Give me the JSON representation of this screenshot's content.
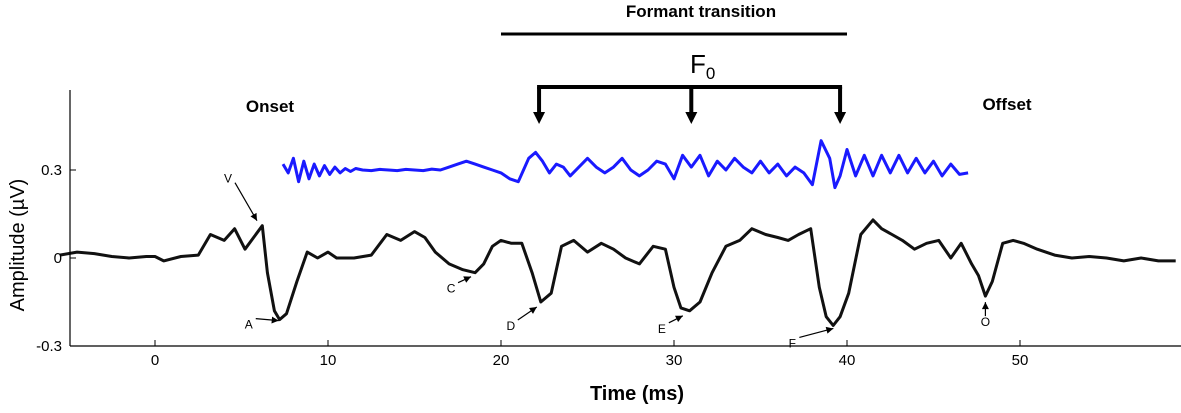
{
  "chart_data": {
    "type": "line",
    "xlabel": "Time (ms)",
    "ylabel": "Amplitude (µV)",
    "xlim": [
      -5.5,
      59
    ],
    "ylim": [
      -0.3,
      0.3
    ],
    "xticks": [
      0,
      10,
      20,
      30,
      40,
      50
    ],
    "yticks": [
      -0.3,
      0,
      0.3
    ],
    "ytick_labels": [
      "-0.3",
      "0",
      "0.3"
    ],
    "grid": false,
    "colors": {
      "stimulus": "#1a1aff",
      "response": "#111111"
    },
    "annotations": {
      "onset": "Onset",
      "offset": "Offset",
      "formant_transition": "Formant transition",
      "formant_transition_range": [
        20,
        40
      ],
      "f0_main": "F",
      "f0_sub": "0",
      "f0_arrow_times": [
        22.2,
        31,
        39.6
      ]
    },
    "peaks": [
      {
        "label": "V",
        "t": 6.3,
        "y": 0.11
      },
      {
        "label": "A",
        "t": 7.5,
        "y": -0.2
      },
      {
        "label": "C",
        "t": 18.5,
        "y": -0.05
      },
      {
        "label": "D",
        "t": 22.3,
        "y": -0.15
      },
      {
        "label": "E",
        "t": 30.8,
        "y": -0.18
      },
      {
        "label": "F",
        "t": 39.5,
        "y": -0.23
      },
      {
        "label": "O",
        "t": 48,
        "y": -0.13
      }
    ],
    "series": [
      {
        "kind": "response",
        "x": [
          -5.5,
          -4.5,
          -3.5,
          -2.5,
          -1.5,
          -0.5,
          0,
          0.5,
          1.5,
          2.5,
          3.2,
          4,
          4.6,
          5.2,
          5.7,
          6.2,
          6.5,
          6.9,
          7.2,
          7.6,
          8.2,
          8.8,
          9.4,
          10,
          10.5,
          11.5,
          12.5,
          13.4,
          14.2,
          15,
          15.6,
          16.2,
          17,
          17.8,
          18.5,
          19,
          19.5,
          20,
          20.6,
          21.2,
          21.8,
          22.3,
          22.9,
          23.5,
          24.2,
          25,
          25.8,
          26.5,
          27.2,
          28,
          28.8,
          29.5,
          30,
          30.4,
          30.9,
          31.5,
          32.2,
          33,
          33.8,
          34.5,
          35.3,
          36,
          36.6,
          37.2,
          37.9,
          38.4,
          38.8,
          39.2,
          39.6,
          40.1,
          40.8,
          41.5,
          42,
          42.6,
          43.2,
          43.9,
          44.6,
          45.3,
          46,
          46.6,
          47.2,
          47.6,
          48,
          48.4,
          49,
          49.6,
          50.2,
          51,
          52,
          53,
          54,
          55,
          56,
          57,
          58,
          59
        ],
        "y": [
          0.01,
          0.02,
          0.015,
          0.005,
          0,
          0.005,
          0.005,
          -0.01,
          0.005,
          0.01,
          0.08,
          0.06,
          0.1,
          0.03,
          0.07,
          0.11,
          -0.05,
          -0.18,
          -0.21,
          -0.19,
          -0.08,
          0.02,
          0.0,
          0.02,
          0.0,
          0.0,
          0.01,
          0.08,
          0.06,
          0.09,
          0.07,
          0.02,
          -0.02,
          -0.04,
          -0.05,
          -0.02,
          0.04,
          0.06,
          0.05,
          0.05,
          -0.05,
          -0.15,
          -0.12,
          0.04,
          0.06,
          0.02,
          0.05,
          0.03,
          0.0,
          -0.02,
          0.04,
          0.03,
          -0.1,
          -0.17,
          -0.18,
          -0.15,
          -0.05,
          0.04,
          0.06,
          0.1,
          0.08,
          0.07,
          0.06,
          0.08,
          0.1,
          -0.1,
          -0.2,
          -0.23,
          -0.2,
          -0.12,
          0.08,
          0.13,
          0.1,
          0.08,
          0.06,
          0.03,
          0.05,
          0.06,
          0.0,
          0.05,
          -0.02,
          -0.06,
          -0.13,
          -0.08,
          0.05,
          0.06,
          0.05,
          0.03,
          0.01,
          0.0,
          0.005,
          0.0,
          -0.01,
          0.0,
          -0.01,
          -0.01
        ]
      },
      {
        "kind": "stimulus",
        "x": [
          7.4,
          7.7,
          8,
          8.3,
          8.6,
          8.9,
          9.2,
          9.5,
          9.8,
          10.1,
          10.4,
          10.7,
          11,
          11.3,
          11.6,
          12,
          12.5,
          13,
          13.5,
          14,
          14.5,
          15,
          15.5,
          16,
          16.5,
          17,
          17.5,
          18,
          18.5,
          19,
          19.5,
          20,
          20.5,
          21,
          21.3,
          21.6,
          22,
          22.4,
          22.8,
          23.2,
          23.6,
          24,
          24.5,
          25,
          25.5,
          26,
          26.5,
          27,
          27.5,
          28,
          28.5,
          29,
          29.5,
          30,
          30.5,
          31,
          31.5,
          32,
          32.5,
          33,
          33.5,
          34,
          34.5,
          35,
          35.5,
          36,
          36.5,
          37,
          37.5,
          38,
          38.5,
          39,
          39.3,
          39.6,
          40,
          40.5,
          41,
          41.5,
          42,
          42.5,
          43,
          43.5,
          44,
          44.5,
          45,
          45.5,
          46,
          46.5,
          47
        ],
        "y": [
          0.32,
          0.29,
          0.34,
          0.26,
          0.33,
          0.27,
          0.32,
          0.28,
          0.315,
          0.285,
          0.31,
          0.29,
          0.305,
          0.295,
          0.305,
          0.3,
          0.298,
          0.302,
          0.3,
          0.298,
          0.302,
          0.3,
          0.298,
          0.303,
          0.3,
          0.31,
          0.32,
          0.33,
          0.32,
          0.31,
          0.3,
          0.29,
          0.27,
          0.26,
          0.3,
          0.34,
          0.36,
          0.33,
          0.29,
          0.32,
          0.31,
          0.28,
          0.31,
          0.34,
          0.31,
          0.29,
          0.31,
          0.34,
          0.3,
          0.28,
          0.3,
          0.33,
          0.32,
          0.27,
          0.35,
          0.31,
          0.35,
          0.28,
          0.33,
          0.3,
          0.34,
          0.31,
          0.29,
          0.33,
          0.29,
          0.32,
          0.28,
          0.31,
          0.29,
          0.25,
          0.4,
          0.34,
          0.24,
          0.28,
          0.37,
          0.28,
          0.35,
          0.28,
          0.35,
          0.29,
          0.35,
          0.29,
          0.34,
          0.29,
          0.33,
          0.28,
          0.32,
          0.285,
          0.29
        ]
      }
    ]
  }
}
